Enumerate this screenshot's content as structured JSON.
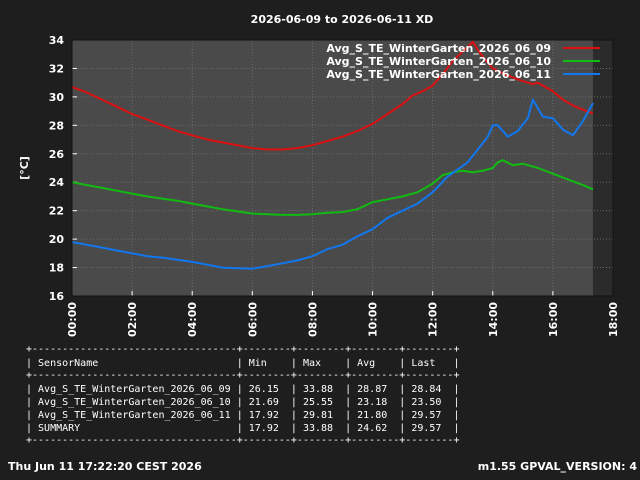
{
  "title": "2026-06-09 to 2026-06-11 XD",
  "footer": {
    "left": "Thu Jun 11 17:22:20 CEST 2026",
    "right": "m1.55 GPVAL_VERSION: 4"
  },
  "table": {
    "border": "+----------------------------------+--------+--------+--------+--------+",
    "header": "| SensorName                       | Min    | Max    | Avg    | Last   |",
    "rows": [
      "| Avg_S_TE_WinterGarten_2026_06_09 | 26.15  | 33.88  | 28.87  | 28.84  |",
      "| Avg_S_TE_WinterGarten_2026_06_10 | 21.69  | 25.55  | 23.18  | 23.50  |",
      "| Avg_S_TE_WinterGarten_2026_06_11 | 17.92  | 29.81  | 21.80  | 29.57  |",
      "| SUMMARY                          | 17.92  | 33.88  | 24.62  | 29.57  |"
    ]
  },
  "chart_data": {
    "type": "line",
    "title": "2026-06-09 to 2026-06-11 XD",
    "ylabel": "[°C]",
    "xlabel": "",
    "xlim": [
      "00:00",
      "18:00"
    ],
    "ylim": [
      16,
      34
    ],
    "x_ticks": [
      "00:00",
      "02:00",
      "04:00",
      "06:00",
      "08:00",
      "10:00",
      "12:00",
      "14:00",
      "16:00",
      "18:00"
    ],
    "y_ticks": [
      16,
      18,
      20,
      22,
      24,
      26,
      28,
      30,
      32,
      34
    ],
    "grid": true,
    "legend_position": "top-right",
    "colors": {
      "background": "#1e1e1e",
      "plot": "#4a4a4a",
      "future_band": "#2b2b2b",
      "grid": "#6a6a6a"
    },
    "series": [
      {
        "name": "Avg_S_TE_WinterGarten_2026_06_09",
        "color": "#dd1111",
        "points": [
          [
            "00:00",
            30.7
          ],
          [
            "00:30",
            30.3
          ],
          [
            "01:00",
            29.8
          ],
          [
            "01:30",
            29.3
          ],
          [
            "02:00",
            28.8
          ],
          [
            "02:30",
            28.4
          ],
          [
            "03:00",
            28.0
          ],
          [
            "03:30",
            27.6
          ],
          [
            "04:00",
            27.3
          ],
          [
            "04:30",
            27.0
          ],
          [
            "05:00",
            26.8
          ],
          [
            "05:30",
            26.6
          ],
          [
            "06:00",
            26.4
          ],
          [
            "06:30",
            26.3
          ],
          [
            "07:00",
            26.3
          ],
          [
            "07:30",
            26.4
          ],
          [
            "08:00",
            26.6
          ],
          [
            "08:30",
            26.9
          ],
          [
            "09:00",
            27.2
          ],
          [
            "09:30",
            27.6
          ],
          [
            "10:00",
            28.1
          ],
          [
            "10:30",
            28.8
          ],
          [
            "11:00",
            29.5
          ],
          [
            "11:20",
            30.1
          ],
          [
            "11:40",
            30.4
          ],
          [
            "12:00",
            30.8
          ],
          [
            "12:20",
            31.6
          ],
          [
            "12:40",
            32.5
          ],
          [
            "13:00",
            33.2
          ],
          [
            "13:10",
            33.5
          ],
          [
            "13:20",
            33.88
          ],
          [
            "13:30",
            33.3
          ],
          [
            "13:45",
            32.6
          ],
          [
            "14:00",
            32.0
          ],
          [
            "14:30",
            31.5
          ],
          [
            "15:00",
            31.1
          ],
          [
            "15:20",
            30.9
          ],
          [
            "15:30",
            31.0
          ],
          [
            "16:00",
            30.4
          ],
          [
            "16:20",
            29.8
          ],
          [
            "16:40",
            29.4
          ],
          [
            "17:00",
            29.1
          ],
          [
            "17:20",
            28.84
          ]
        ]
      },
      {
        "name": "Avg_S_TE_WinterGarten_2026_06_10",
        "color": "#11bb11",
        "points": [
          [
            "00:00",
            24.0
          ],
          [
            "00:30",
            23.8
          ],
          [
            "01:00",
            23.6
          ],
          [
            "01:30",
            23.4
          ],
          [
            "02:00",
            23.2
          ],
          [
            "02:30",
            23.0
          ],
          [
            "03:00",
            22.85
          ],
          [
            "03:30",
            22.7
          ],
          [
            "04:00",
            22.5
          ],
          [
            "04:30",
            22.3
          ],
          [
            "05:00",
            22.1
          ],
          [
            "05:30",
            21.95
          ],
          [
            "06:00",
            21.8
          ],
          [
            "06:30",
            21.75
          ],
          [
            "07:00",
            21.7
          ],
          [
            "07:30",
            21.7
          ],
          [
            "08:00",
            21.75
          ],
          [
            "08:30",
            21.85
          ],
          [
            "09:00",
            21.9
          ],
          [
            "09:30",
            22.1
          ],
          [
            "10:00",
            22.6
          ],
          [
            "10:30",
            22.8
          ],
          [
            "11:00",
            23.0
          ],
          [
            "11:30",
            23.3
          ],
          [
            "12:00",
            23.9
          ],
          [
            "12:20",
            24.5
          ],
          [
            "12:40",
            24.7
          ],
          [
            "13:00",
            24.8
          ],
          [
            "13:20",
            24.7
          ],
          [
            "13:40",
            24.8
          ],
          [
            "14:00",
            25.0
          ],
          [
            "14:10",
            25.4
          ],
          [
            "14:20",
            25.55
          ],
          [
            "14:40",
            25.2
          ],
          [
            "15:00",
            25.3
          ],
          [
            "15:30",
            25.0
          ],
          [
            "16:00",
            24.6
          ],
          [
            "16:30",
            24.2
          ],
          [
            "17:00",
            23.8
          ],
          [
            "17:20",
            23.5
          ]
        ]
      },
      {
        "name": "Avg_S_TE_WinterGarten_2026_06_11",
        "color": "#1177ee",
        "points": [
          [
            "00:00",
            19.8
          ],
          [
            "00:30",
            19.6
          ],
          [
            "01:00",
            19.4
          ],
          [
            "01:30",
            19.2
          ],
          [
            "02:00",
            19.0
          ],
          [
            "02:30",
            18.8
          ],
          [
            "03:00",
            18.7
          ],
          [
            "03:30",
            18.55
          ],
          [
            "04:00",
            18.4
          ],
          [
            "04:30",
            18.2
          ],
          [
            "05:00",
            18.0
          ],
          [
            "05:30",
            17.95
          ],
          [
            "06:00",
            17.92
          ],
          [
            "06:30",
            18.1
          ],
          [
            "07:00",
            18.3
          ],
          [
            "07:30",
            18.5
          ],
          [
            "08:00",
            18.8
          ],
          [
            "08:30",
            19.3
          ],
          [
            "09:00",
            19.6
          ],
          [
            "09:30",
            20.2
          ],
          [
            "10:00",
            20.7
          ],
          [
            "10:30",
            21.5
          ],
          [
            "11:00",
            22.0
          ],
          [
            "11:30",
            22.5
          ],
          [
            "12:00",
            23.3
          ],
          [
            "12:30",
            24.4
          ],
          [
            "12:50",
            24.9
          ],
          [
            "13:10",
            25.4
          ],
          [
            "13:30",
            26.3
          ],
          [
            "13:50",
            27.2
          ],
          [
            "14:00",
            28.0
          ],
          [
            "14:10",
            28.0
          ],
          [
            "14:30",
            27.2
          ],
          [
            "14:50",
            27.6
          ],
          [
            "15:10",
            28.5
          ],
          [
            "15:20",
            29.81
          ],
          [
            "15:30",
            29.2
          ],
          [
            "15:40",
            28.6
          ],
          [
            "16:00",
            28.5
          ],
          [
            "16:20",
            27.7
          ],
          [
            "16:40",
            27.3
          ],
          [
            "17:00",
            28.3
          ],
          [
            "17:20",
            29.57
          ]
        ]
      }
    ]
  }
}
